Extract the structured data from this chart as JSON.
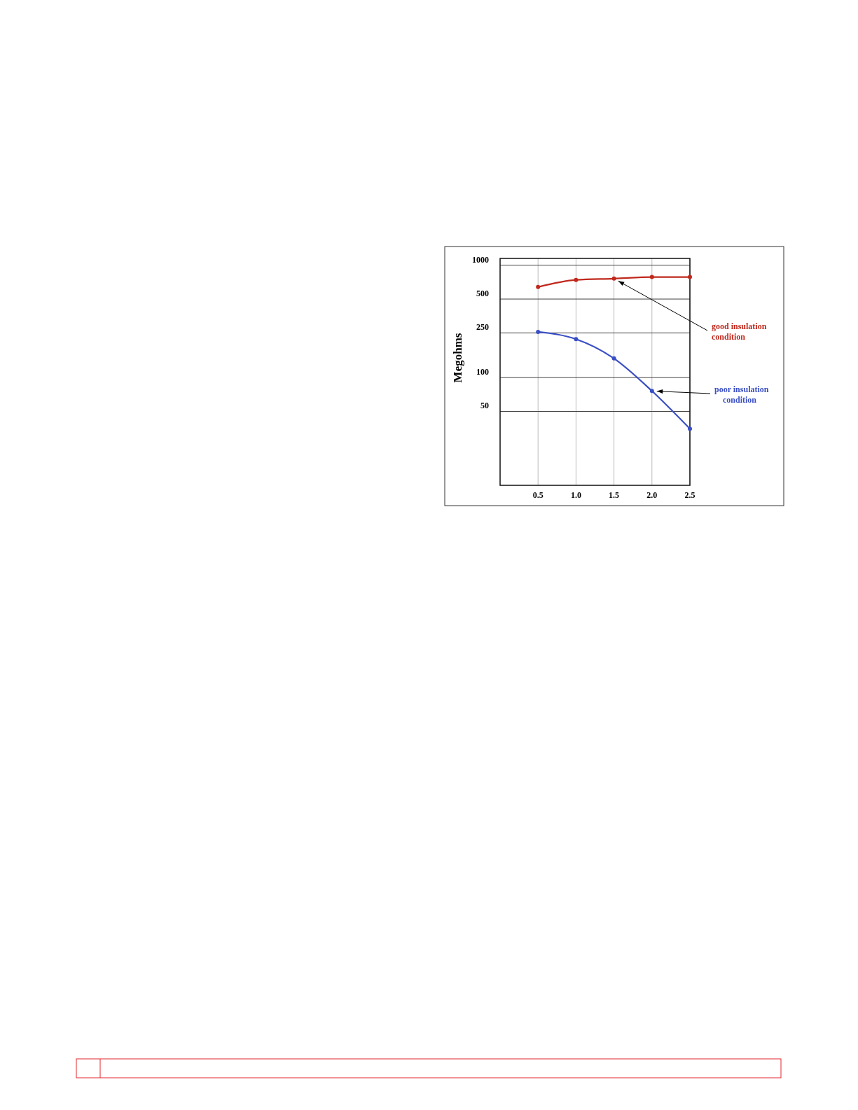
{
  "chart_data": {
    "type": "line",
    "ylabel": "Megohms",
    "x": [
      0.5,
      1.0,
      1.5,
      2.0,
      2.5
    ],
    "series": [
      {
        "color": "#c0281c",
        "values": [
          640,
          740,
          760,
          785,
          785
        ]
      },
      {
        "color": "#3a4fc4",
        "values": [
          255,
          220,
          148,
          76,
          35
        ]
      }
    ],
    "xlim": [
      0,
      2.5
    ],
    "xticks": [
      {
        "value": 0.5,
        "label": "0.5"
      },
      {
        "value": 1.0,
        "label": "1.0"
      },
      {
        "value": 1.5,
        "label": "1.5"
      },
      {
        "value": 2.0,
        "label": "2.0"
      },
      {
        "value": 2.5,
        "label": "2.5"
      }
    ],
    "ylim": [
      11,
      1150
    ],
    "yticks": [
      50,
      100,
      250,
      500,
      1000
    ],
    "log": true,
    "grid": true,
    "marker": "circle",
    "annotations": [
      {
        "text": "good insulation condition",
        "x": 1.5,
        "y": 760
      },
      {
        "text": "poor insulation condition",
        "x": 2.0,
        "y": 76
      }
    ]
  }
}
